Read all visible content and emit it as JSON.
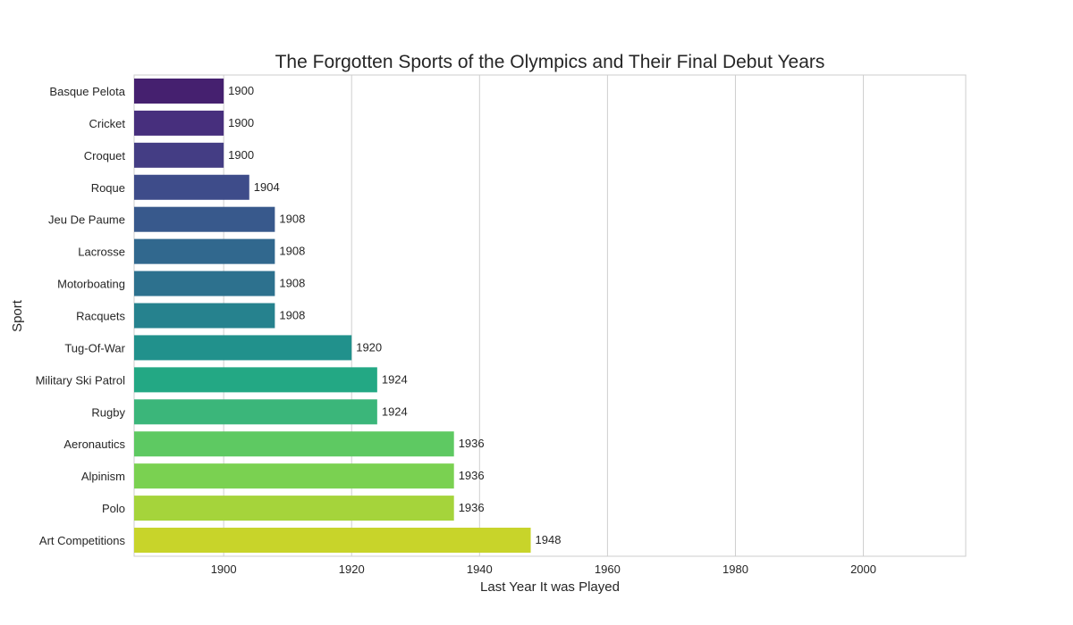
{
  "chart_data": {
    "type": "bar",
    "orientation": "horizontal",
    "title": "The Forgotten Sports of the Olympics and Their Final Debut Years",
    "xlabel": "Last Year It was Played",
    "ylabel": "Sport",
    "xlim": [
      1886,
      2016
    ],
    "xticks": [
      1900,
      1920,
      1940,
      1960,
      1980,
      2000
    ],
    "grid": true,
    "categories": [
      "Basque Pelota",
      "Cricket",
      "Croquet",
      "Roque",
      "Jeu De Paume",
      "Lacrosse",
      "Motorboating",
      "Racquets",
      "Tug-Of-War",
      "Military Ski Patrol",
      "Rugby",
      "Aeronautics",
      "Alpinism",
      "Polo",
      "Art Competitions"
    ],
    "values": [
      1900,
      1900,
      1900,
      1904,
      1908,
      1908,
      1908,
      1908,
      1920,
      1924,
      1924,
      1936,
      1936,
      1936,
      1948
    ],
    "colors": [
      "#45206f",
      "#472f7d",
      "#443d84",
      "#3e4c8a",
      "#38598c",
      "#31688e",
      "#2d718e",
      "#26828e",
      "#21918c",
      "#23a884",
      "#3bb67a",
      "#5ec962",
      "#7ad151",
      "#a5d43b",
      "#c8d42a"
    ]
  }
}
